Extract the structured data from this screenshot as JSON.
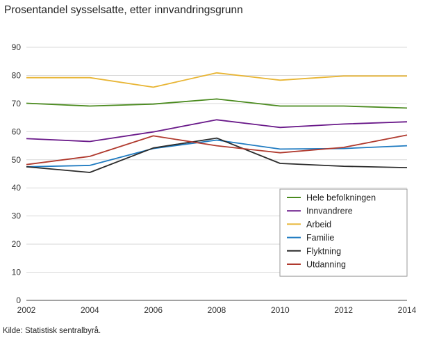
{
  "title": "Prosentandel sysselsatte, etter innvandringsgrunn",
  "source": "Kilde: Statistisk sentralbyrå.",
  "chart_data": {
    "type": "line",
    "title": "Prosentandel sysselsatte, etter innvandringsgrunn",
    "xlabel": "",
    "ylabel": "",
    "x": [
      2002,
      2004,
      2006,
      2008,
      2010,
      2012,
      2014
    ],
    "xlim": [
      2002,
      2014
    ],
    "ylim": [
      0,
      90
    ],
    "yticks": [
      0,
      10,
      20,
      30,
      40,
      50,
      60,
      70,
      80,
      90
    ],
    "grid": "horizontal",
    "legend_position": "bottom-right",
    "series": [
      {
        "name": "Hele befolkningen",
        "color": "#4a8a1e",
        "values": [
          70.1,
          69.1,
          69.8,
          71.6,
          69.1,
          69.1,
          68.4
        ]
      },
      {
        "name": "Innvandrere",
        "color": "#6a1a8a",
        "values": [
          57.5,
          56.5,
          59.9,
          64.2,
          61.5,
          62.7,
          63.5
        ]
      },
      {
        "name": "Arbeid",
        "color": "#e8b534",
        "values": [
          79.2,
          79.2,
          75.8,
          80.9,
          78.3,
          79.8,
          79.8
        ]
      },
      {
        "name": "Familie",
        "color": "#1f7bc1",
        "values": [
          47.5,
          48.0,
          54.0,
          57.0,
          53.8,
          54.0,
          55.0
        ]
      },
      {
        "name": "Flyktning",
        "color": "#2b2b2b",
        "values": [
          47.5,
          45.5,
          54.2,
          57.7,
          48.7,
          47.7,
          47.2
        ]
      },
      {
        "name": "Utdanning",
        "color": "#b03a2e",
        "values": [
          48.3,
          51.2,
          58.5,
          55.0,
          52.5,
          54.4,
          58.8
        ]
      }
    ]
  }
}
